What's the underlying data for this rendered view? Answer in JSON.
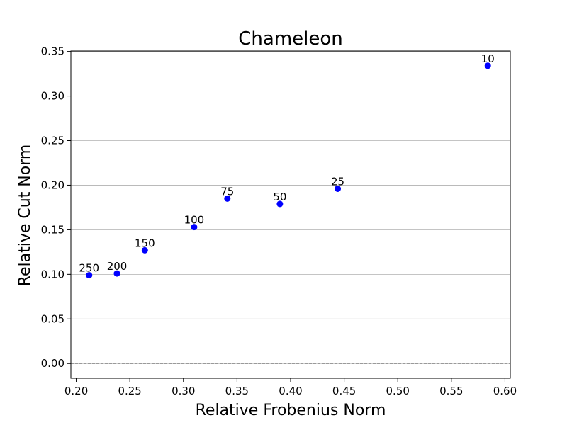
{
  "chart_data": {
    "type": "scatter",
    "title": "Chameleon",
    "xlabel": "Relative Frobenius Norm",
    "ylabel": "Relative Cut Norm",
    "xlim": [
      0.195,
      0.605
    ],
    "ylim": [
      -0.0165,
      0.3505
    ],
    "xticks": [
      0.2,
      0.25,
      0.3,
      0.35,
      0.4,
      0.45,
      0.5,
      0.55,
      0.6
    ],
    "xtick_labels": [
      "0.20",
      "0.25",
      "0.30",
      "0.35",
      "0.40",
      "0.45",
      "0.50",
      "0.55",
      "0.60"
    ],
    "yticks": [
      0.0,
      0.05,
      0.1,
      0.15,
      0.2,
      0.25,
      0.3,
      0.35
    ],
    "ytick_labels": [
      "0.00",
      "0.05",
      "0.10",
      "0.15",
      "0.20",
      "0.25",
      "0.30",
      "0.35"
    ],
    "grid": "horizontal",
    "reference_line": {
      "y": 0.0,
      "style": "dashed",
      "color": "#808080"
    },
    "point_color": "#0000ff",
    "points": [
      {
        "x": 0.212,
        "y": 0.099,
        "label": "250"
      },
      {
        "x": 0.238,
        "y": 0.101,
        "label": "200"
      },
      {
        "x": 0.264,
        "y": 0.127,
        "label": "150"
      },
      {
        "x": 0.31,
        "y": 0.153,
        "label": "100"
      },
      {
        "x": 0.341,
        "y": 0.185,
        "label": "75"
      },
      {
        "x": 0.39,
        "y": 0.179,
        "label": "50"
      },
      {
        "x": 0.444,
        "y": 0.196,
        "label": "25"
      },
      {
        "x": 0.584,
        "y": 0.334,
        "label": "10"
      }
    ]
  }
}
